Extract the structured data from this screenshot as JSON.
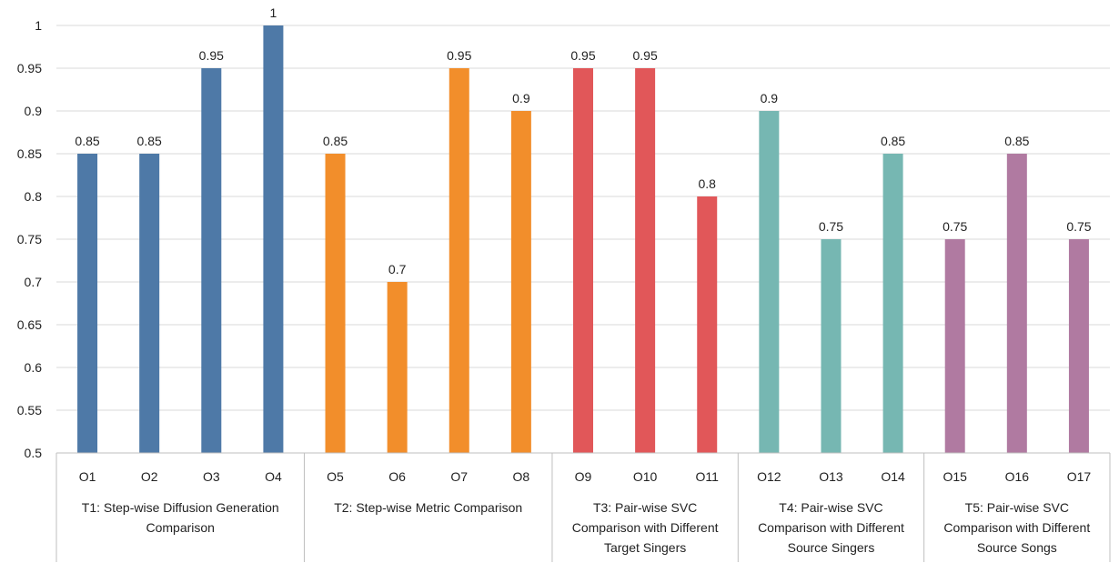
{
  "chart_data": {
    "type": "bar",
    "title": "",
    "xlabel": "",
    "ylabel": "",
    "ylim": [
      0.5,
      1
    ],
    "yticks": [
      "0.5",
      "0.55",
      "0.6",
      "0.65",
      "0.7",
      "0.75",
      "0.8",
      "0.85",
      "0.9",
      "0.95",
      "1"
    ],
    "grid": true,
    "legend": "none",
    "categories": [
      "O1",
      "O2",
      "O3",
      "O4",
      "O5",
      "O6",
      "O7",
      "O8",
      "O9",
      "O10",
      "O11",
      "O12",
      "O13",
      "O14",
      "O15",
      "O16",
      "O17"
    ],
    "values": [
      0.85,
      0.85,
      0.95,
      1,
      0.85,
      0.7,
      0.95,
      0.9,
      0.95,
      0.95,
      0.8,
      0.9,
      0.75,
      0.85,
      0.75,
      0.85,
      0.75
    ],
    "data_labels": [
      "0.85",
      "0.85",
      "0.95",
      "1",
      "0.85",
      "0.7",
      "0.95",
      "0.9",
      "0.95",
      "0.95",
      "0.8",
      "0.9",
      "0.75",
      "0.85",
      "0.75",
      "0.85",
      "0.75"
    ],
    "groups": [
      {
        "label_lines": [
          "T1: Step-wise Diffusion Generation",
          "Comparison"
        ],
        "count": 4,
        "color": "#4e79a7"
      },
      {
        "label_lines": [
          "T2: Step-wise Metric Comparison"
        ],
        "count": 4,
        "color": "#f28e2b"
      },
      {
        "label_lines": [
          "T3: Pair-wise SVC",
          "Comparison with Different",
          "Target Singers"
        ],
        "count": 3,
        "color": "#e15759"
      },
      {
        "label_lines": [
          "T4: Pair-wise SVC",
          "Comparison with Different",
          "Source Singers"
        ],
        "count": 3,
        "color": "#76b7b2"
      },
      {
        "label_lines": [
          "T5: Pair-wise SVC",
          "Comparison with Different",
          "Source Songs"
        ],
        "count": 3,
        "color": "#b07aa1"
      }
    ]
  }
}
